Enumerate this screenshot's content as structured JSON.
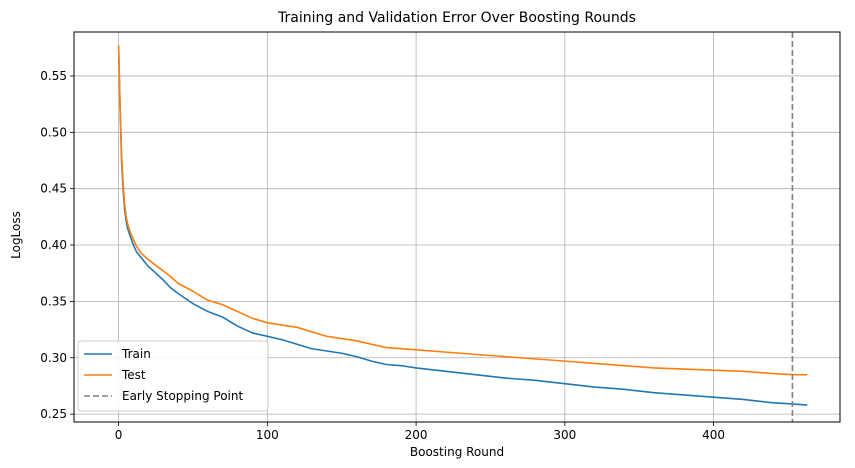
{
  "chart_data": {
    "type": "line",
    "title": "Training and Validation Error Over Boosting Rounds",
    "xlabel": "Boosting Round",
    "ylabel": "LogLoss",
    "xlim": [
      -30,
      485
    ],
    "ylim": [
      0.243,
      0.589
    ],
    "xticks": [
      0,
      100,
      200,
      300,
      400
    ],
    "yticks": [
      0.25,
      0.3,
      0.35,
      0.4,
      0.45,
      0.5,
      0.55
    ],
    "grid": true,
    "legend_position": "lower-left",
    "series": [
      {
        "name": "Train",
        "color": "#1f77b4",
        "x": [
          0,
          1,
          2,
          3,
          4,
          5,
          6,
          7,
          8,
          10,
          12,
          15,
          20,
          25,
          30,
          35,
          40,
          50,
          60,
          70,
          80,
          90,
          100,
          110,
          120,
          130,
          140,
          150,
          160,
          170,
          180,
          190,
          200,
          220,
          240,
          260,
          280,
          300,
          320,
          340,
          360,
          380,
          400,
          420,
          440,
          453,
          463
        ],
        "y": [
          0.575,
          0.52,
          0.475,
          0.45,
          0.432,
          0.422,
          0.415,
          0.411,
          0.407,
          0.4,
          0.394,
          0.389,
          0.381,
          0.375,
          0.369,
          0.362,
          0.357,
          0.348,
          0.341,
          0.336,
          0.328,
          0.322,
          0.319,
          0.316,
          0.312,
          0.308,
          0.306,
          0.304,
          0.301,
          0.297,
          0.294,
          0.293,
          0.291,
          0.288,
          0.285,
          0.282,
          0.28,
          0.277,
          0.274,
          0.272,
          0.269,
          0.267,
          0.265,
          0.263,
          0.26,
          0.259,
          0.258
        ]
      },
      {
        "name": "Test",
        "color": "#ff7f0e",
        "x": [
          0,
          1,
          2,
          3,
          4,
          5,
          6,
          7,
          8,
          10,
          12,
          15,
          20,
          25,
          30,
          35,
          40,
          50,
          60,
          70,
          80,
          90,
          100,
          110,
          120,
          130,
          140,
          150,
          160,
          170,
          180,
          190,
          200,
          220,
          240,
          260,
          280,
          300,
          320,
          340,
          360,
          380,
          400,
          420,
          440,
          453,
          463
        ],
        "y": [
          0.577,
          0.523,
          0.48,
          0.455,
          0.437,
          0.426,
          0.419,
          0.415,
          0.411,
          0.405,
          0.399,
          0.393,
          0.387,
          0.382,
          0.377,
          0.372,
          0.366,
          0.359,
          0.351,
          0.347,
          0.341,
          0.335,
          0.331,
          0.329,
          0.327,
          0.323,
          0.319,
          0.317,
          0.315,
          0.312,
          0.309,
          0.308,
          0.307,
          0.305,
          0.303,
          0.301,
          0.299,
          0.297,
          0.295,
          0.293,
          0.291,
          0.29,
          0.289,
          0.288,
          0.286,
          0.285,
          0.285
        ]
      }
    ],
    "vline": {
      "name": "Early Stopping Point",
      "x": 453,
      "color": "#808080",
      "style": "dashed"
    }
  }
}
